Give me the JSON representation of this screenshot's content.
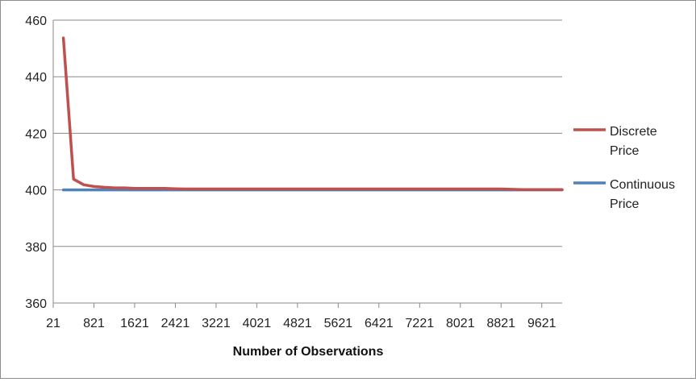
{
  "chart_data": {
    "type": "line",
    "title": "",
    "xlabel": "Number of Observations",
    "ylabel": "",
    "xlim": [
      21,
      10021
    ],
    "ylim": [
      360,
      460
    ],
    "y_ticks": [
      "360",
      "380",
      "400",
      "420",
      "440",
      "460"
    ],
    "x_ticks": [
      "21",
      "821",
      "1621",
      "2421",
      "3221",
      "4021",
      "4821",
      "5621",
      "6421",
      "7221",
      "8021",
      "8821",
      "9621"
    ],
    "grid": true,
    "legend_position": "right",
    "series": [
      {
        "name": "Discrete Price",
        "color": "#C0504D",
        "x": [
          221,
          421,
          621,
          821,
          1021,
          1221,
          1421,
          1621,
          1821,
          2021,
          2221,
          2421,
          2621,
          2821,
          3021,
          4021,
          5021,
          6021,
          7021,
          8021,
          8821,
          9021,
          9221,
          9621,
          10021
        ],
        "y": [
          453.7,
          403.8,
          401.8,
          401.2,
          400.9,
          400.7,
          400.7,
          400.5,
          400.5,
          400.5,
          400.5,
          400.4,
          400.3,
          400.3,
          400.3,
          400.3,
          400.3,
          400.3,
          400.3,
          400.3,
          400.3,
          400.2,
          400.1,
          400.1,
          400.1
        ]
      },
      {
        "name": "Continuous Price",
        "color": "#4F81BD",
        "x": [
          221,
          10021
        ],
        "y": [
          400,
          400
        ]
      }
    ]
  }
}
